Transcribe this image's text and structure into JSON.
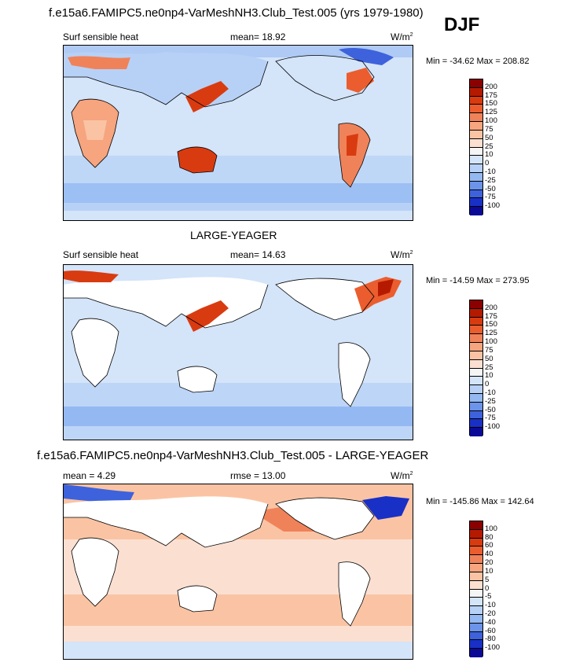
{
  "figure": {
    "title": "f.e15a6.FAMIPC5.ne0np4-VarMeshNH3.Club_Test.005 (yrs 1979-1980)",
    "season": "DJF"
  },
  "chart_data": [
    {
      "type": "heatmap",
      "panel": "model",
      "left_label": "Surf sensible heat",
      "center_label": "mean=  18.92",
      "units": "W/m",
      "units_exp": "2",
      "min_max": "Min = -34.62 Max = 208.82",
      "colorbar_levels": [
        "200",
        "175",
        "150",
        "125",
        "100",
        "75",
        "50",
        "25",
        "10",
        "0",
        "-10",
        "-25",
        "-50",
        "-75",
        "-100"
      ],
      "colorbar_colors": [
        "#8b0000",
        "#b51a00",
        "#d93b10",
        "#eb5d2e",
        "#f0825a",
        "#f6a57f",
        "#fac4a4",
        "#fbe0d2",
        "#f5f5f5",
        "#d4e4f9",
        "#b7d1f6",
        "#94b9f2",
        "#6b94ea",
        "#3d62dc",
        "#1930c6",
        "#0a0a96"
      ]
    },
    {
      "type": "heatmap",
      "panel": "observations",
      "title": "LARGE-YEAGER",
      "left_label": "Surf sensible heat",
      "center_label": "mean=  14.63",
      "units": "W/m",
      "units_exp": "2",
      "min_max": "Min = -14.59 Max = 273.95",
      "colorbar_levels": [
        "200",
        "175",
        "150",
        "125",
        "100",
        "75",
        "50",
        "25",
        "10",
        "0",
        "-10",
        "-25",
        "-50",
        "-75",
        "-100"
      ],
      "colorbar_colors": [
        "#8b0000",
        "#b51a00",
        "#d93b10",
        "#eb5d2e",
        "#f0825a",
        "#f6a57f",
        "#fac4a4",
        "#fbe0d2",
        "#f5f5f5",
        "#d4e4f9",
        "#b7d1f6",
        "#94b9f2",
        "#6b94ea",
        "#3d62dc",
        "#1930c6",
        "#0a0a96"
      ]
    },
    {
      "type": "heatmap",
      "panel": "difference",
      "title": "f.e15a6.FAMIPC5.ne0np4-VarMeshNH3.Club_Test.005 - LARGE-YEAGER",
      "left_label": "mean =  4.29",
      "center_label": "rmse =  13.00",
      "units": "W/m",
      "units_exp": "2",
      "min_max": "Min = -145.86 Max = 142.64",
      "colorbar_levels": [
        "100",
        "80",
        "60",
        "40",
        "20",
        "10",
        "5",
        "0",
        "-5",
        "-10",
        "-20",
        "-40",
        "-60",
        "-80",
        "-100"
      ],
      "colorbar_colors": [
        "#8b0000",
        "#b51a00",
        "#d93b10",
        "#eb5d2e",
        "#f0825a",
        "#f6a57f",
        "#fac4a4",
        "#fbe0d2",
        "#f5f5f5",
        "#d4e4f9",
        "#b7d1f6",
        "#94b9f2",
        "#6b94ea",
        "#3d62dc",
        "#1930c6",
        "#0a0a96"
      ]
    }
  ]
}
